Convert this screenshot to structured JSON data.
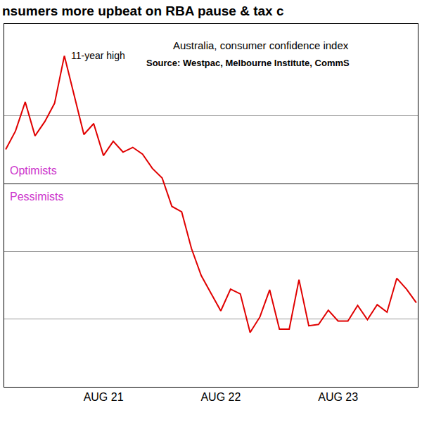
{
  "chart_data": {
    "type": "line",
    "title": "nsumers more upbeat on RBA pause & tax c",
    "subtitle": "Australia, consumer confidence index",
    "source": "Source: Westpac, Melbourne Institute, CommS",
    "peak_label": "11-year high",
    "above_label": "Optimists",
    "below_label": "Pessimists",
    "hline": 100,
    "categories": [
      null,
      null,
      null,
      null,
      null,
      null,
      null,
      null,
      null,
      null,
      "AUG 21",
      null,
      null,
      null,
      null,
      null,
      null,
      null,
      null,
      null,
      null,
      null,
      "AUG 22",
      null,
      null,
      null,
      null,
      null,
      null,
      null,
      null,
      null,
      null,
      null,
      "AUG 23",
      null,
      null,
      null,
      null,
      null,
      null,
      null,
      null
    ],
    "values": [
      105.0,
      107.7,
      112.0,
      107.0,
      109.1,
      111.8,
      118.8,
      113.1,
      107.2,
      108.8,
      104.1,
      106.2,
      104.6,
      105.3,
      104.3,
      102.2,
      100.8,
      96.6,
      95.8,
      90.4,
      86.4,
      83.8,
      81.2,
      84.4,
      83.7,
      78.0,
      80.3,
      84.3,
      78.5,
      78.5,
      85.8,
      79.0,
      79.2,
      81.3,
      79.7,
      79.7,
      82.0,
      79.9,
      82.1,
      81.0,
      86.0,
      84.4,
      82.4
    ],
    "color": "#e00000",
    "ylim": [
      70,
      123.5
    ],
    "yticks": [
      80,
      90,
      100,
      110
    ],
    "grid": true,
    "tick_labels": "x"
  }
}
